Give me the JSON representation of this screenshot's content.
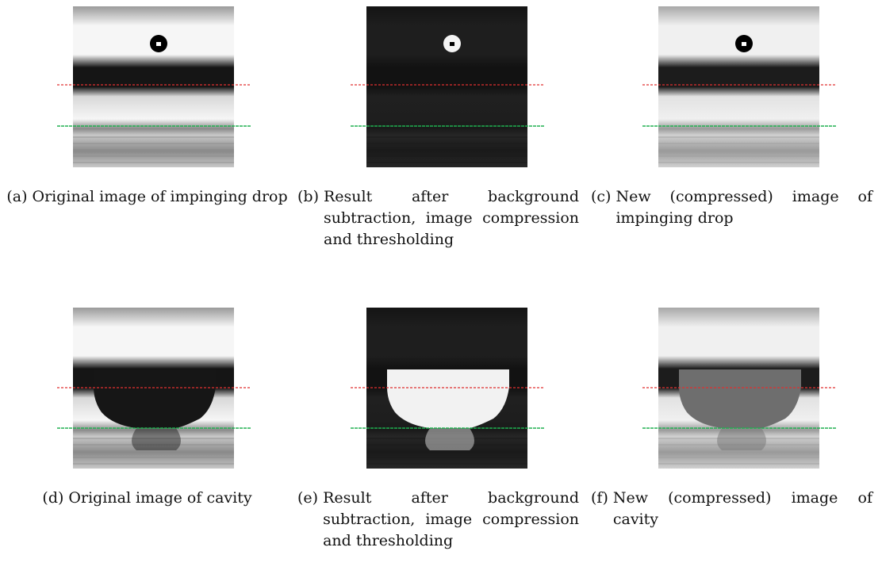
{
  "subfigures": [
    {
      "label": "(a)",
      "caption": "Original image of impinging drop"
    },
    {
      "label": "(b)",
      "caption": "Result after background subtraction, image compression and thresholding"
    },
    {
      "label": "(c)",
      "caption": "New (compressed) image of impinging drop"
    },
    {
      "label": "(d)",
      "caption": "Original image of cavity"
    },
    {
      "label": "(e)",
      "caption": "Result after background subtraction, image compression and thresholding"
    },
    {
      "label": "(f)",
      "caption": "New (compressed) image of cavity"
    }
  ]
}
